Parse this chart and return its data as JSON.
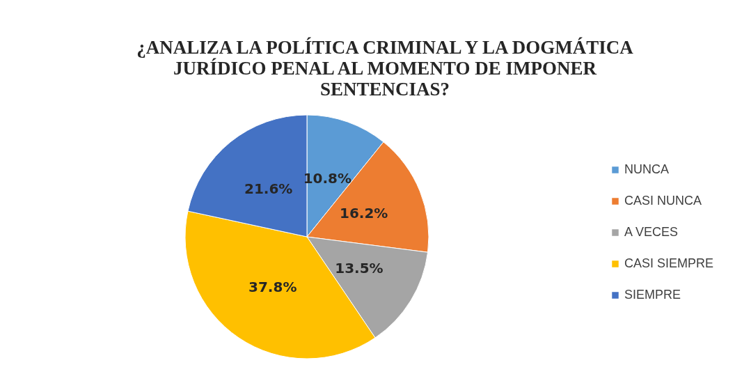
{
  "chart_data": {
    "type": "pie",
    "title": "¿ANALIZA LA POLÍTICA CRIMINAL Y LA DOGMÁTICA JURÍDICO PENAL AL MOMENTO DE IMPONER SENTENCIAS?",
    "categories": [
      "NUNCA",
      "CASI NUNCA",
      "A VECES",
      "CASI SIEMPRE",
      "SIEMPRE"
    ],
    "values": [
      10.8,
      16.2,
      13.5,
      37.8,
      21.6
    ],
    "colors": [
      "#5b9bd5",
      "#ed7d31",
      "#a5a5a5",
      "#ffc000",
      "#4472c4"
    ],
    "value_labels": [
      "10.8%",
      "16.2%",
      "13.5%",
      "37.8%",
      "21.6%"
    ],
    "legend": "right"
  }
}
